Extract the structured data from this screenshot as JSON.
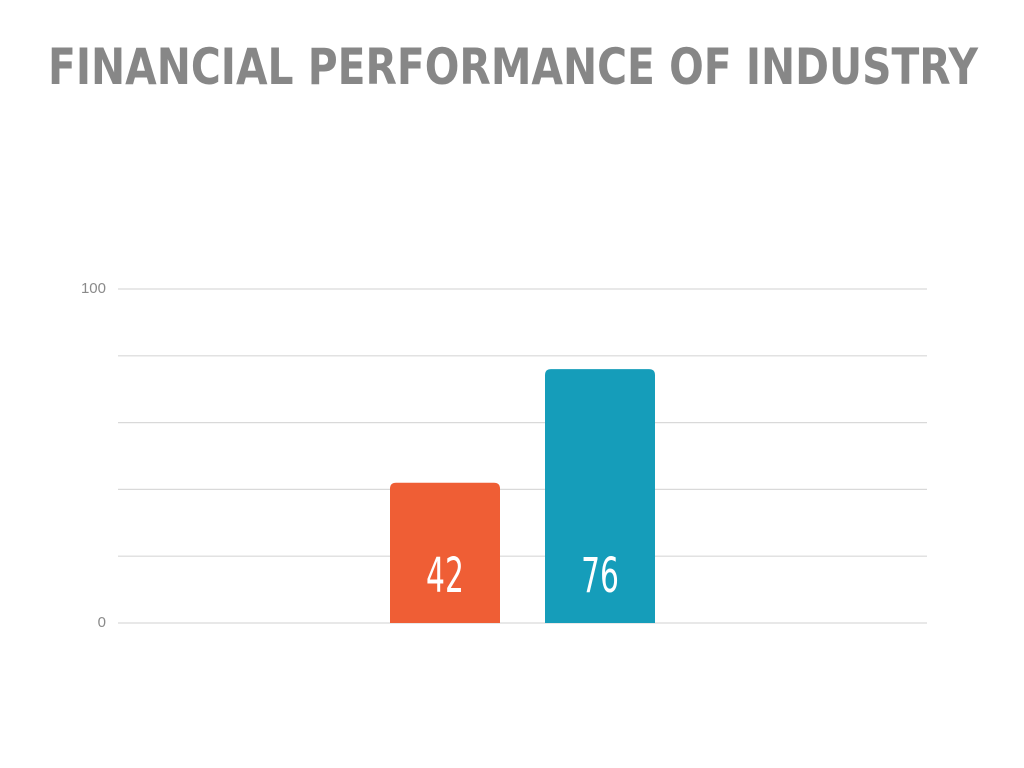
{
  "chart_data": {
    "type": "bar",
    "title": "FINANCIAL PERFORMANCE OF INDUSTRY",
    "categories": [
      null,
      null
    ],
    "values": [
      42,
      76
    ],
    "colors": [
      "#ef5e35",
      "#159dba"
    ],
    "ylim": [
      0,
      100
    ],
    "yticks": [
      0,
      {
        "value": 20,
        "label": null
      },
      {
        "value": 40,
        "label": null
      },
      {
        "value": 60,
        "label": null
      },
      {
        "value": 80,
        "label": null
      },
      100
    ],
    "grid": true
  }
}
